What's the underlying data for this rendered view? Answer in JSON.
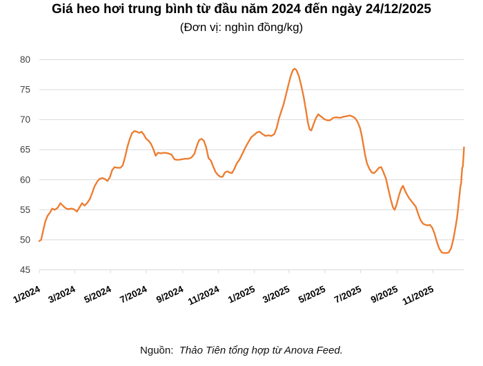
{
  "header": {
    "title": "Giá heo hơi trung bình từ đầu năm 2024 đến ngày 24/12/2025",
    "subtitle": "(Đơn vị: nghìn đồng/kg)"
  },
  "footer": {
    "source_label": "Nguồn:",
    "source_text": "Thảo Tiên tổng hợp từ Anova Feed."
  },
  "chart_data": {
    "type": "line",
    "title": "Giá heo hơi trung bình từ đầu năm 2024 đến ngày 24/12/2025",
    "subtitle": "(Đơn vị: nghìn đồng/kg)",
    "unit": "nghìn đồng/kg",
    "x_range": [
      "2024-01-01",
      "2025-12-24"
    ],
    "ylim": [
      45,
      80
    ],
    "y_ticks": [
      45,
      50,
      55,
      60,
      65,
      70,
      75,
      80
    ],
    "x_tick_labels": [
      "1/2024",
      "3/2024",
      "5/2024",
      "7/2024",
      "9/2024",
      "11/2024",
      "1/2025",
      "3/2025",
      "5/2025",
      "7/2025",
      "9/2025",
      "11/2025"
    ],
    "grid": true,
    "legend_position": "none",
    "colors": {
      "line": "#ED7D31",
      "grid": "#D9D9D9",
      "y_label": "#404040",
      "x_label": "#000000"
    },
    "series": [
      {
        "name": "Giá heo hơi trung bình",
        "color": "#ED7D31",
        "points": [
          [
            "2024-01-01",
            49.8
          ],
          [
            "2024-01-04",
            50.0
          ],
          [
            "2024-01-07",
            51.3
          ],
          [
            "2024-01-11",
            53.0
          ],
          [
            "2024-01-15",
            54.0
          ],
          [
            "2024-01-19",
            54.5
          ],
          [
            "2024-01-23",
            55.2
          ],
          [
            "2024-01-27",
            55.0
          ],
          [
            "2024-02-01",
            55.3
          ],
          [
            "2024-02-06",
            56.1
          ],
          [
            "2024-02-10",
            55.7
          ],
          [
            "2024-02-14",
            55.3
          ],
          [
            "2024-02-19",
            55.1
          ],
          [
            "2024-02-24",
            55.2
          ],
          [
            "2024-02-29",
            55.1
          ],
          [
            "2024-03-05",
            54.7
          ],
          [
            "2024-03-10",
            55.5
          ],
          [
            "2024-03-14",
            56.1
          ],
          [
            "2024-03-18",
            55.7
          ],
          [
            "2024-03-23",
            56.2
          ],
          [
            "2024-03-27",
            56.8
          ],
          [
            "2024-03-31",
            57.8
          ],
          [
            "2024-04-04",
            58.9
          ],
          [
            "2024-04-08",
            59.6
          ],
          [
            "2024-04-12",
            60.1
          ],
          [
            "2024-04-17",
            60.3
          ],
          [
            "2024-04-22",
            60.1
          ],
          [
            "2024-04-26",
            59.8
          ],
          [
            "2024-04-30",
            60.4
          ],
          [
            "2024-05-04",
            61.6
          ],
          [
            "2024-05-08",
            62.1
          ],
          [
            "2024-05-13",
            62.0
          ],
          [
            "2024-05-18",
            62.0
          ],
          [
            "2024-05-22",
            62.4
          ],
          [
            "2024-05-26",
            63.8
          ],
          [
            "2024-05-30",
            65.5
          ],
          [
            "2024-06-03",
            66.8
          ],
          [
            "2024-06-07",
            67.8
          ],
          [
            "2024-06-11",
            68.1
          ],
          [
            "2024-06-15",
            68.0
          ],
          [
            "2024-06-19",
            67.8
          ],
          [
            "2024-06-23",
            68.0
          ],
          [
            "2024-06-27",
            67.5
          ],
          [
            "2024-07-01",
            66.8
          ],
          [
            "2024-07-05",
            66.5
          ],
          [
            "2024-07-09",
            66.0
          ],
          [
            "2024-07-13",
            65.1
          ],
          [
            "2024-07-17",
            64.0
          ],
          [
            "2024-07-21",
            64.5
          ],
          [
            "2024-07-26",
            64.4
          ],
          [
            "2024-08-01",
            64.5
          ],
          [
            "2024-08-07",
            64.4
          ],
          [
            "2024-08-13",
            64.2
          ],
          [
            "2024-08-18",
            63.4
          ],
          [
            "2024-08-24",
            63.3
          ],
          [
            "2024-08-30",
            63.4
          ],
          [
            "2024-09-05",
            63.5
          ],
          [
            "2024-09-11",
            63.5
          ],
          [
            "2024-09-16",
            63.7
          ],
          [
            "2024-09-21",
            64.3
          ],
          [
            "2024-09-25",
            65.6
          ],
          [
            "2024-09-29",
            66.6
          ],
          [
            "2024-10-03",
            66.8
          ],
          [
            "2024-10-07",
            66.5
          ],
          [
            "2024-10-11",
            65.4
          ],
          [
            "2024-10-15",
            63.6
          ],
          [
            "2024-10-19",
            63.2
          ],
          [
            "2024-10-23",
            62.2
          ],
          [
            "2024-10-27",
            61.3
          ],
          [
            "2024-10-31",
            60.8
          ],
          [
            "2024-11-04",
            60.5
          ],
          [
            "2024-11-08",
            60.5
          ],
          [
            "2024-11-12",
            61.2
          ],
          [
            "2024-11-16",
            61.4
          ],
          [
            "2024-11-20",
            61.2
          ],
          [
            "2024-11-24",
            61.1
          ],
          [
            "2024-11-28",
            61.8
          ],
          [
            "2024-12-02",
            62.7
          ],
          [
            "2024-12-07",
            63.4
          ],
          [
            "2024-12-12",
            64.4
          ],
          [
            "2024-12-17",
            65.4
          ],
          [
            "2024-12-22",
            66.3
          ],
          [
            "2024-12-27",
            67.1
          ],
          [
            "2025-01-01",
            67.5
          ],
          [
            "2025-01-06",
            67.9
          ],
          [
            "2025-01-10",
            68.0
          ],
          [
            "2025-01-15",
            67.6
          ],
          [
            "2025-01-20",
            67.3
          ],
          [
            "2025-01-25",
            67.4
          ],
          [
            "2025-01-30",
            67.3
          ],
          [
            "2025-02-04",
            67.6
          ],
          [
            "2025-02-08",
            68.6
          ],
          [
            "2025-02-12",
            70.2
          ],
          [
            "2025-02-16",
            71.4
          ],
          [
            "2025-02-20",
            72.6
          ],
          [
            "2025-02-24",
            74.2
          ],
          [
            "2025-02-28",
            75.8
          ],
          [
            "2025-03-04",
            77.3
          ],
          [
            "2025-03-08",
            78.3
          ],
          [
            "2025-03-11",
            78.5
          ],
          [
            "2025-03-14",
            78.2
          ],
          [
            "2025-03-18",
            77.2
          ],
          [
            "2025-03-22",
            75.6
          ],
          [
            "2025-03-26",
            73.8
          ],
          [
            "2025-03-30",
            71.5
          ],
          [
            "2025-04-02",
            69.6
          ],
          [
            "2025-04-05",
            68.4
          ],
          [
            "2025-04-08",
            68.2
          ],
          [
            "2025-04-12",
            69.3
          ],
          [
            "2025-04-16",
            70.3
          ],
          [
            "2025-04-20",
            70.9
          ],
          [
            "2025-04-25",
            70.5
          ],
          [
            "2025-04-30",
            70.1
          ],
          [
            "2025-05-05",
            69.9
          ],
          [
            "2025-05-10",
            69.9
          ],
          [
            "2025-05-15",
            70.3
          ],
          [
            "2025-05-21",
            70.4
          ],
          [
            "2025-05-27",
            70.3
          ],
          [
            "2025-06-02",
            70.5
          ],
          [
            "2025-06-08",
            70.6
          ],
          [
            "2025-06-13",
            70.7
          ],
          [
            "2025-06-18",
            70.5
          ],
          [
            "2025-06-22",
            70.2
          ],
          [
            "2025-06-26",
            69.6
          ],
          [
            "2025-06-30",
            68.6
          ],
          [
            "2025-07-03",
            67.3
          ],
          [
            "2025-07-06",
            65.6
          ],
          [
            "2025-07-09",
            63.9
          ],
          [
            "2025-07-12",
            62.7
          ],
          [
            "2025-07-16",
            61.8
          ],
          [
            "2025-07-20",
            61.2
          ],
          [
            "2025-07-24",
            61.1
          ],
          [
            "2025-07-28",
            61.5
          ],
          [
            "2025-08-01",
            62.0
          ],
          [
            "2025-08-05",
            62.1
          ],
          [
            "2025-08-09",
            61.2
          ],
          [
            "2025-08-13",
            60.2
          ],
          [
            "2025-08-17",
            58.5
          ],
          [
            "2025-08-21",
            56.8
          ],
          [
            "2025-08-25",
            55.4
          ],
          [
            "2025-08-28",
            55.0
          ],
          [
            "2025-08-31",
            55.8
          ],
          [
            "2025-09-04",
            57.3
          ],
          [
            "2025-09-08",
            58.5
          ],
          [
            "2025-09-11",
            59.0
          ],
          [
            "2025-09-14",
            58.3
          ],
          [
            "2025-09-17",
            57.7
          ],
          [
            "2025-09-21",
            57.0
          ],
          [
            "2025-09-25",
            56.5
          ],
          [
            "2025-09-29",
            56.0
          ],
          [
            "2025-10-03",
            55.5
          ],
          [
            "2025-10-07",
            54.3
          ],
          [
            "2025-10-11",
            53.3
          ],
          [
            "2025-10-15",
            52.7
          ],
          [
            "2025-10-19",
            52.5
          ],
          [
            "2025-10-23",
            52.4
          ],
          [
            "2025-10-27",
            52.5
          ],
          [
            "2025-10-31",
            52.0
          ],
          [
            "2025-11-04",
            51.0
          ],
          [
            "2025-11-08",
            49.6
          ],
          [
            "2025-11-12",
            48.5
          ],
          [
            "2025-11-16",
            47.9
          ],
          [
            "2025-11-20",
            47.8
          ],
          [
            "2025-11-24",
            47.8
          ],
          [
            "2025-11-28",
            47.9
          ],
          [
            "2025-12-02",
            48.6
          ],
          [
            "2025-12-06",
            50.2
          ],
          [
            "2025-12-09",
            51.8
          ],
          [
            "2025-12-12",
            53.6
          ],
          [
            "2025-12-14",
            55.3
          ],
          [
            "2025-12-16",
            57.2
          ],
          [
            "2025-12-18",
            59.0
          ],
          [
            "2025-12-19",
            59.3
          ],
          [
            "2025-12-20",
            60.8
          ],
          [
            "2025-12-21",
            62.0
          ],
          [
            "2025-12-22",
            62.2
          ],
          [
            "2025-12-23",
            63.6
          ],
          [
            "2025-12-24",
            65.4
          ]
        ]
      }
    ]
  }
}
